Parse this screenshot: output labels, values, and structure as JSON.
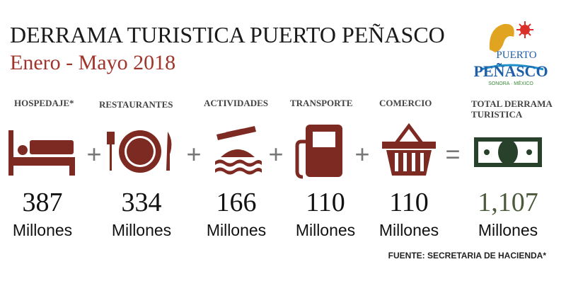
{
  "header": {
    "title": "DERRAMA TURISTICA PUERTO PEÑASCO",
    "subtitle": "Enero - Mayo 2018"
  },
  "logo": {
    "line1": "PUERTO",
    "line2": "PEÑASCO",
    "line3": "SONORA · MÉXICO"
  },
  "items": [
    {
      "label": "HOSPEDAJE*",
      "value": "387",
      "unit": "Millones"
    },
    {
      "label": "RESTAURANTES",
      "value": "334",
      "unit": "Millones"
    },
    {
      "label": "ACTIVIDADES",
      "value": "166",
      "unit": "Millones"
    },
    {
      "label": "TRANSPORTE",
      "value": "110",
      "unit": "Millones"
    },
    {
      "label": "COMERCIO",
      "value": "110",
      "unit": "Millones"
    }
  ],
  "operators": [
    "+",
    "+",
    "+",
    "+",
    "="
  ],
  "total": {
    "label_line1": "TOTAL DERRAMA",
    "label_line2": "TURISTICA",
    "value": "1,107",
    "unit": "Millones"
  },
  "source": "FUENTE: SECRETARIA DE HACIENDA*"
}
